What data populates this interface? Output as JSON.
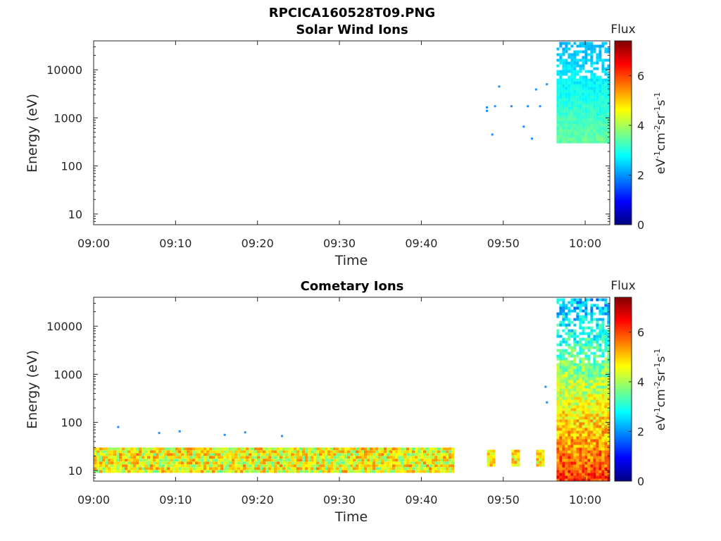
{
  "figure_title": "RPCICA160528T09.PNG",
  "colors": {
    "axis": "#262626",
    "colormap": [
      "#00007f",
      "#0000ff",
      "#007fff",
      "#00ffff",
      "#7fff7f",
      "#ffff00",
      "#ff7f00",
      "#ff0000",
      "#7f0000"
    ]
  },
  "chart_data": [
    {
      "type": "heatmap",
      "title": "Solar Wind Ions",
      "xlabel": "Time",
      "ylabel": "Energy (eV)",
      "yscale": "log",
      "xlim": [
        "09:00",
        "10:03"
      ],
      "ylim": [
        6,
        40000
      ],
      "x_ticks": [
        "09:00",
        "09:10",
        "09:20",
        "09:30",
        "09:40",
        "09:50",
        "10:00"
      ],
      "y_ticks": [
        "10",
        "100",
        "1000",
        "10000"
      ],
      "colorbar": {
        "label": "Flux",
        "unit": "eV-1cm-2sr-1s-1",
        "range": [
          0,
          7.4
        ],
        "ticks": [
          "0",
          "2",
          "4",
          "6"
        ]
      },
      "regions": [
        {
          "t_start": "09:56:30",
          "t_end": "10:02:50",
          "e_min": 320,
          "e_max": 38000,
          "flux_min": 2.0,
          "flux_max": 3.6
        }
      ],
      "scatter_points": [
        {
          "t": "09:48:00",
          "e": 1650
        },
        {
          "t": "09:48:00",
          "e": 1400
        },
        {
          "t": "09:49:00",
          "e": 1750
        },
        {
          "t": "09:49:30",
          "e": 4500
        },
        {
          "t": "09:48:40",
          "e": 450
        },
        {
          "t": "09:51:00",
          "e": 1750
        },
        {
          "t": "09:52:30",
          "e": 660
        },
        {
          "t": "09:53:00",
          "e": 1750
        },
        {
          "t": "09:53:30",
          "e": 370
        },
        {
          "t": "09:54:00",
          "e": 3900
        },
        {
          "t": "09:54:30",
          "e": 1750
        },
        {
          "t": "09:55:20",
          "e": 5000
        }
      ]
    },
    {
      "type": "heatmap",
      "title": "Cometary Ions",
      "xlabel": "Time",
      "ylabel": "Energy (eV)",
      "yscale": "log",
      "xlim": [
        "09:00",
        "10:03"
      ],
      "ylim": [
        6,
        40000
      ],
      "x_ticks": [
        "09:00",
        "09:10",
        "09:20",
        "09:30",
        "09:40",
        "09:50",
        "10:00"
      ],
      "y_ticks": [
        "10",
        "100",
        "1000",
        "10000"
      ],
      "colorbar": {
        "label": "Flux",
        "unit": "eV-1cm-2sr-1s-1",
        "range": [
          0,
          7.4
        ],
        "ticks": [
          "0",
          "2",
          "4",
          "6"
        ]
      },
      "regions": [
        {
          "t_start": "09:00:00",
          "t_end": "09:44:00",
          "e_min": 10,
          "e_max": 30,
          "flux_min": 3.5,
          "flux_max": 5.6
        },
        {
          "t_start": "09:48:00",
          "t_end": "09:49:00",
          "e_min": 13,
          "e_max": 27,
          "flux_min": 4.0,
          "flux_max": 5.5
        },
        {
          "t_start": "09:51:00",
          "t_end": "09:52:00",
          "e_min": 13,
          "e_max": 27,
          "flux_min": 4.0,
          "flux_max": 5.5
        },
        {
          "t_start": "09:54:00",
          "t_end": "09:55:00",
          "e_min": 13,
          "e_max": 27,
          "flux_min": 4.0,
          "flux_max": 5.5
        },
        {
          "t_start": "09:56:30",
          "t_end": "10:02:50",
          "e_min": 6,
          "e_max": 38000,
          "flux_min": 1.5,
          "flux_max": 6.4
        }
      ],
      "scatter_points": [
        {
          "t": "09:55:10",
          "e": 550
        },
        {
          "t": "09:55:20",
          "e": 260
        },
        {
          "t": "09:03:00",
          "e": 80
        },
        {
          "t": "09:08:00",
          "e": 60
        },
        {
          "t": "09:10:30",
          "e": 65
        },
        {
          "t": "09:16:00",
          "e": 55
        },
        {
          "t": "09:18:30",
          "e": 62
        },
        {
          "t": "09:23:00",
          "e": 52
        }
      ]
    }
  ]
}
